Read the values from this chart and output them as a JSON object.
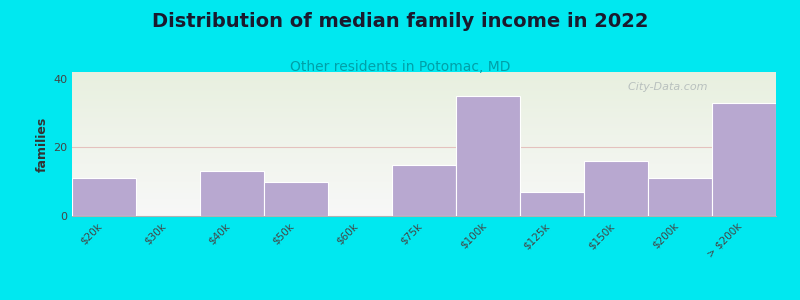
{
  "title": "Distribution of median family income in 2022",
  "subtitle": "Other residents in Potomac, MD",
  "categories": [
    "$20k",
    "$30k",
    "$40k",
    "$50k",
    "$60k",
    "$75k",
    "$100k",
    "$125k",
    "$150k",
    "$200k",
    "> $200k"
  ],
  "values": [
    11,
    0,
    13,
    10,
    0,
    15,
    35,
    7,
    16,
    11,
    33
  ],
  "bar_color": "#b8a8d0",
  "bar_edge_color": "#c8bce0",
  "background_color": "#00e8f0",
  "plot_bg_color_top": "#e8f0e0",
  "plot_bg_color_bottom": "#f8f8f8",
  "ylabel": "families",
  "ylim": [
    0,
    42
  ],
  "yticks": [
    0,
    20,
    40
  ],
  "grid_color": "#dda0a0",
  "grid_alpha": 0.6,
  "title_fontsize": 14,
  "subtitle_fontsize": 10,
  "subtitle_color": "#00a0a8",
  "watermark": "  City-Data.com",
  "watermark_color": "#b0b8b8",
  "tick_label_fontsize": 7.5,
  "ylabel_fontsize": 9,
  "axis_line_color": "#b0b0b0"
}
